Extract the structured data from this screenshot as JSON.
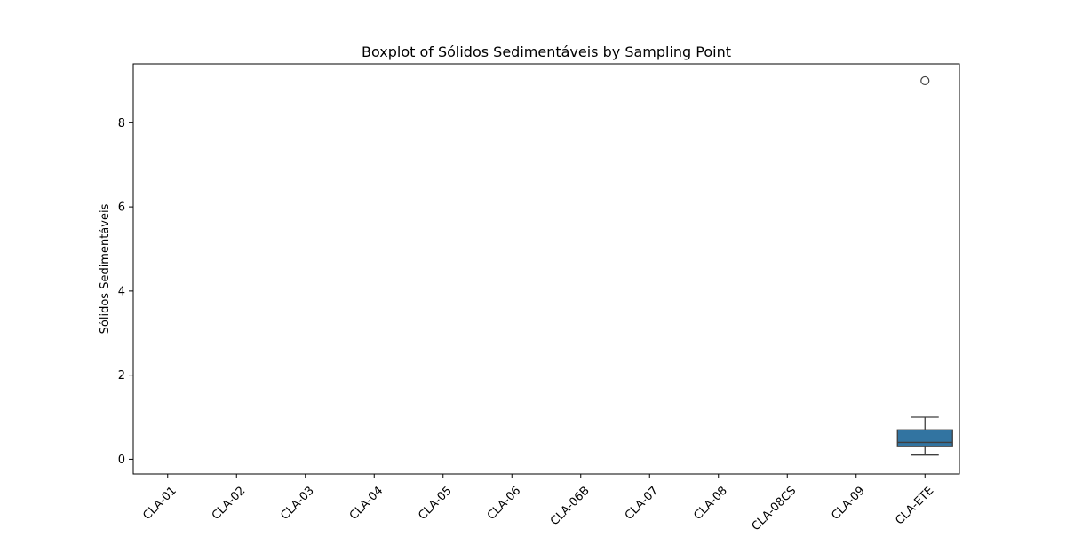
{
  "chart_data": {
    "type": "boxplot",
    "title": "Boxplot of Sólidos Sedimentáveis by Sampling Point",
    "xlabel": "",
    "ylabel": "Sólidos Sedimentáveis",
    "categories": [
      "CLA-01",
      "CLA-02",
      "CLA-03",
      "CLA-04",
      "CLA-05",
      "CLA-06",
      "CLA-06B",
      "CLA-07",
      "CLA-08",
      "CLA-08CS",
      "CLA-09",
      "CLA-ETE"
    ],
    "yticks": [
      0,
      2,
      4,
      6,
      8
    ],
    "ylim": [
      -0.35,
      9.4
    ],
    "grid": false,
    "boxes": [
      {
        "category": "CLA-ETE",
        "whisker_low": 0.1,
        "q1": 0.3,
        "median": 0.4,
        "q3": 0.7,
        "whisker_high": 1.0,
        "outliers": [
          9.0
        ]
      }
    ],
    "colors": {
      "box_fill": "#3274a1",
      "line": "#3f3f3f"
    }
  }
}
